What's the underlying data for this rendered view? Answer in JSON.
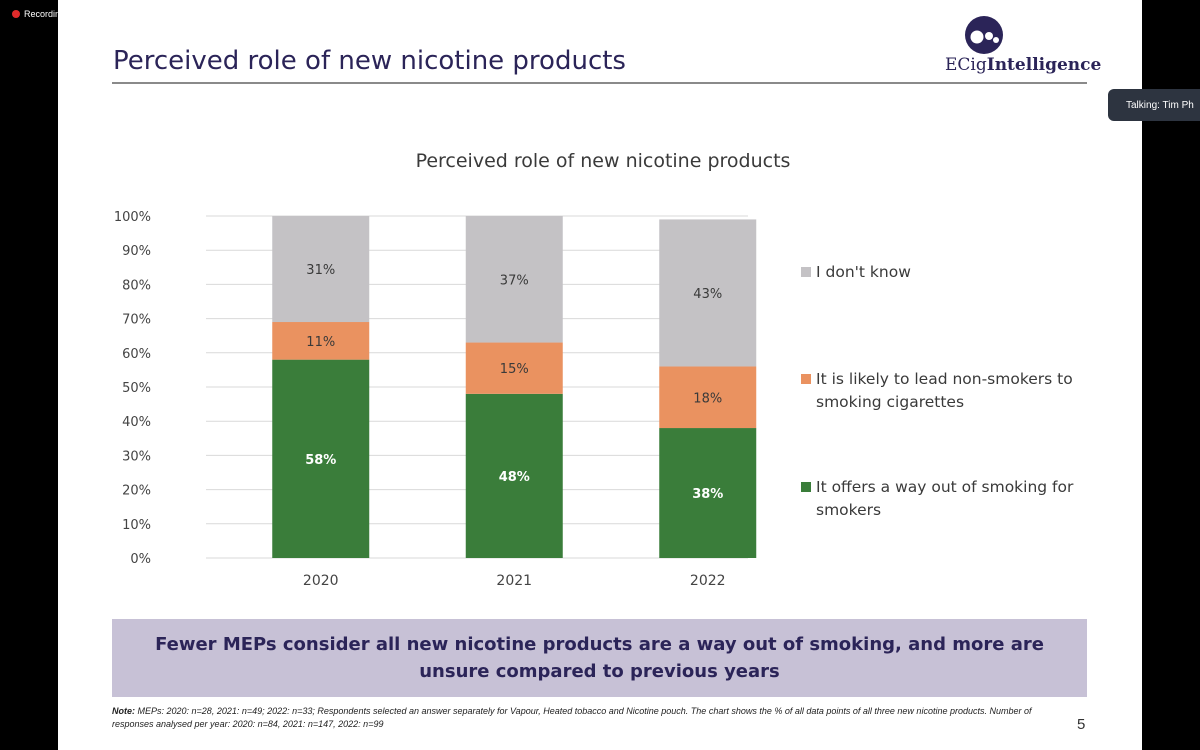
{
  "screen": {
    "recording_label": "Recording",
    "talking_label": "Talking: Tim Ph"
  },
  "slide": {
    "title": "Perceived role of new nicotine products",
    "logo": {
      "text_regular": "ECig",
      "text_bold": "Intelligence"
    },
    "callout": "Fewer MEPs consider all new nicotine products are a way out of smoking, and more are unsure compared to previous years",
    "note_label": "Note:",
    "note": "MEPs: 2020: n=28, 2021: n=49;  2022: n=33; Respondents selected an answer separately for Vapour, Heated tobacco and Nicotine pouch. The chart shows the % of all data points of all three new nicotine products. Number of responses analysed per year: 2020: n=84, 2021: n=147, 2022: n=99",
    "page_number": "5"
  },
  "chart_data": {
    "type": "bar",
    "stacked": true,
    "title": "Perceived role of new nicotine products",
    "categories": [
      "2020",
      "2021",
      "2022"
    ],
    "series": [
      {
        "name": "It offers a way out of smoking for smokers",
        "values": [
          58,
          48,
          38
        ],
        "labels": [
          "58%",
          "48%",
          "38%"
        ],
        "color": "#3a7d3a"
      },
      {
        "name": "It is likely to lead non-smokers to smoking cigarettes",
        "values": [
          11,
          15,
          18
        ],
        "labels": [
          "11%",
          "15%",
          "18%"
        ],
        "color": "#ea9260"
      },
      {
        "name": "I don't know",
        "values": [
          31,
          37,
          43
        ],
        "labels": [
          "31%",
          "37%",
          "43%"
        ],
        "color": "#c4c2c5"
      }
    ],
    "ylim": [
      0,
      100
    ],
    "yticks": [
      "0%",
      "10%",
      "20%",
      "30%",
      "40%",
      "50%",
      "60%",
      "70%",
      "80%",
      "90%",
      "100%"
    ],
    "grid": true,
    "legend_position": "right"
  },
  "colors": {
    "title": "#2b2458",
    "callout_bg": "#c7c1d6",
    "record_dot": "#e02b2b"
  }
}
